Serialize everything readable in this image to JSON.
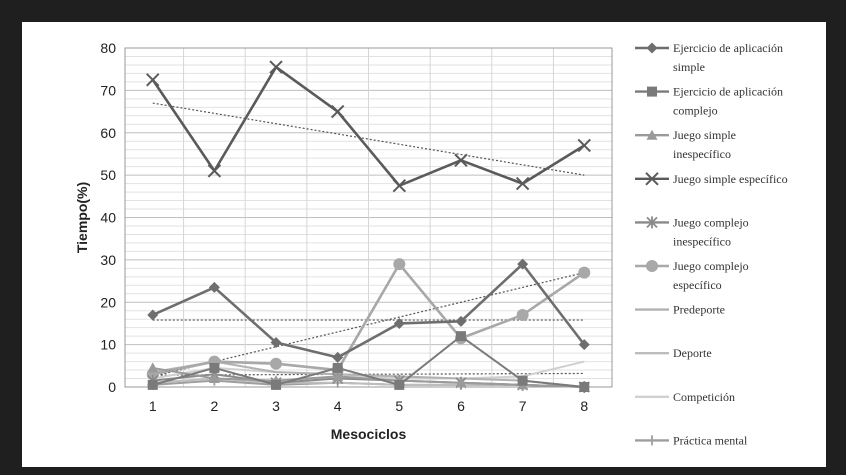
{
  "chart_data": {
    "type": "line",
    "title": "",
    "xlabel": "Mesociclos",
    "ylabel": "Tiempo(%)",
    "x": [
      1,
      2,
      3,
      4,
      5,
      6,
      7,
      8
    ],
    "ylim": [
      0,
      80
    ],
    "yticks": [
      0,
      10,
      20,
      30,
      40,
      50,
      60,
      70,
      80
    ],
    "grid": true,
    "legend_position": "right",
    "series": [
      {
        "name": "Ejercicio de aplicación simple",
        "values": [
          17,
          23.5,
          10.5,
          7,
          15,
          15.5,
          29,
          10
        ],
        "color": "#6e6e6e",
        "marker": "diamond"
      },
      {
        "name": "Ejercicio de aplicación complejo",
        "values": [
          0.5,
          4.5,
          0.5,
          4.5,
          0.5,
          12,
          1.5,
          0
        ],
        "color": "#7a7a7a",
        "marker": "square"
      },
      {
        "name": "Juego simple inespecífico",
        "values": [
          4.5,
          2,
          1.5,
          2.5,
          1.5,
          1,
          0.5,
          0
        ],
        "color": "#9a9a9a",
        "marker": "triangle"
      },
      {
        "name": "Juego simple específico",
        "values": [
          72.5,
          51,
          75.5,
          65,
          47.5,
          53.5,
          48,
          57
        ],
        "color": "#5a5a5a",
        "marker": "x"
      },
      {
        "name": "Juego complejo inespecífico",
        "values": [
          1.5,
          3,
          1,
          2,
          1.5,
          1,
          0.5,
          0
        ],
        "color": "#8a8a8a",
        "marker": "star"
      },
      {
        "name": "Juego complejo específico",
        "values": [
          3,
          6,
          5.5,
          4,
          29,
          11.5,
          17,
          27
        ],
        "color": "#a8a8a8",
        "marker": "circle"
      },
      {
        "name": "Predeporte",
        "values": [
          3.5,
          6,
          3.5,
          3,
          2.5,
          2,
          1.5,
          0
        ],
        "color": "#b2b2b2",
        "marker": "none"
      },
      {
        "name": "Deporte",
        "values": [
          1,
          2,
          1,
          1,
          0.5,
          0.5,
          0.5,
          0
        ],
        "color": "#bdbdbd",
        "marker": "none"
      },
      {
        "name": "Competición",
        "values": [
          2,
          4.5,
          3.5,
          3,
          2,
          2,
          2.5,
          6
        ],
        "color": "#d0d0d0",
        "marker": "none"
      },
      {
        "name": "Práctica mental",
        "values": [
          0.5,
          1.5,
          0.5,
          1,
          0.5,
          0.5,
          0.5,
          0
        ],
        "color": "#9e9e9e",
        "marker": "plus"
      }
    ],
    "trendlines": [
      {
        "series": "Juego simple específico",
        "from": 67,
        "to": 50
      },
      {
        "series": "Ejercicio de aplicación simple",
        "from": 15.8,
        "to": 15.8
      },
      {
        "series": "Juego complejo específico",
        "from": 2.5,
        "to": 27
      },
      {
        "series": "Ejercicio de aplicación complejo",
        "from": 2.8,
        "to": 3.2
      }
    ]
  }
}
